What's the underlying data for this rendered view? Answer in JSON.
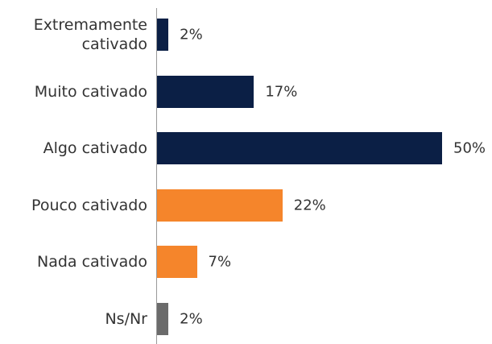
{
  "chart_data": {
    "type": "bar",
    "orientation": "horizontal",
    "categories": [
      "Extremamente\ncativado",
      "Muito cativado",
      "Algo cativado",
      "Pouco cativado",
      "Nada cativado",
      "Ns/Nr"
    ],
    "values": [
      2,
      17,
      50,
      22,
      7,
      2
    ],
    "value_labels": [
      "2%",
      "17%",
      "50%",
      "22%",
      "7%",
      "2%"
    ],
    "colors": [
      "#0b1f45",
      "#0b1f45",
      "#0b1f45",
      "#f5852b",
      "#f5852b",
      "#6b6b6b"
    ]
  }
}
